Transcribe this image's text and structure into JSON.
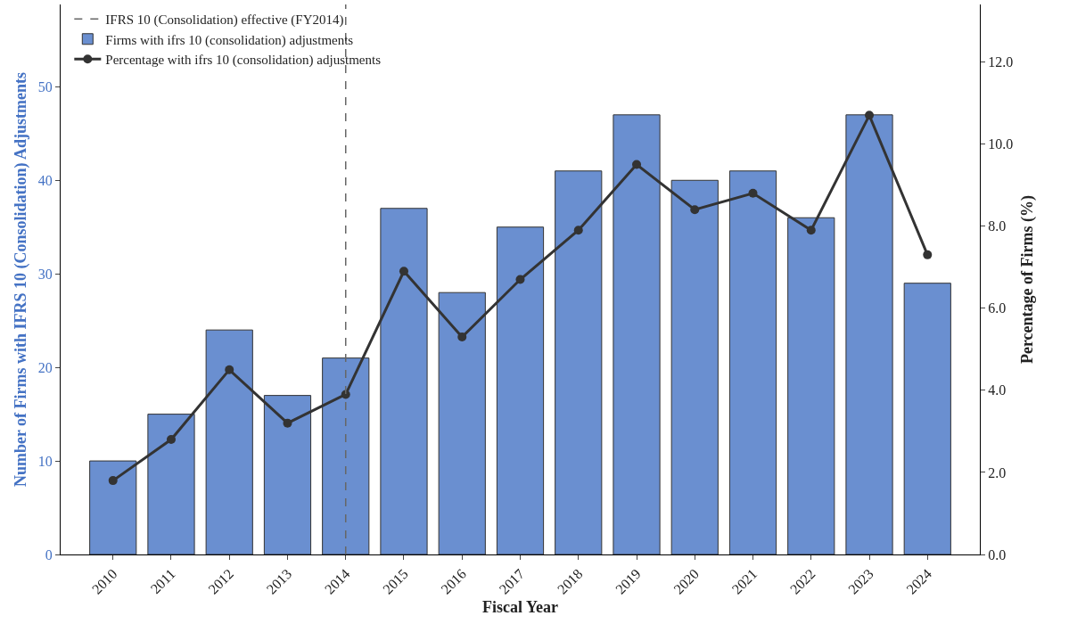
{
  "chart_data": {
    "type": "bar",
    "xlabel": "Fiscal Year",
    "ylabel": "Number of Firms with IFRS 10 (Consolidation) Adjustments",
    "y2label": "Percentage of Firms (%)",
    "categories": [
      "2010",
      "2011",
      "2012",
      "2013",
      "2014",
      "2015",
      "2016",
      "2017",
      "2018",
      "2019",
      "2020",
      "2021",
      "2022",
      "2023",
      "2024"
    ],
    "series": [
      {
        "name": "Firms with ifrs 10 (consolidation) adjustments",
        "color": "#6a8fd0",
        "values": [
          10,
          15,
          24,
          17,
          21,
          37,
          28,
          35,
          41,
          47,
          40,
          41,
          36,
          47,
          29
        ]
      },
      {
        "name": "Percentage with ifrs 10 (consolidation) adjustments",
        "type": "line",
        "axis": "y2",
        "color": "#333333",
        "marker": "circle",
        "line_style": "solid",
        "values": [
          1.8,
          2.8,
          4.5,
          3.2,
          3.9,
          6.9,
          5.3,
          6.7,
          7.9,
          9.5,
          8.4,
          8.8,
          7.9,
          10.7,
          7.3
        ]
      }
    ],
    "ylim": [
      0,
      58.8
    ],
    "yticks": [
      0,
      10,
      20,
      30,
      40,
      50
    ],
    "y2lim": [
      0,
      13.4
    ],
    "y2ticks": [
      {
        "value": 0,
        "label": "0.0"
      },
      {
        "value": 2,
        "label": "2.0"
      },
      {
        "value": 4,
        "label": "4.0"
      },
      {
        "value": 6,
        "label": "6.0"
      },
      {
        "value": 8,
        "label": "8.0"
      },
      {
        "value": 10,
        "label": "10.0"
      },
      {
        "value": 12,
        "label": "12.0"
      }
    ],
    "ref_lines": [
      {
        "axis": "x",
        "value": "2014",
        "label": "IFRS 10 (Consolidation) effective (FY2014)",
        "color": "#666666",
        "line_style": "dashed"
      }
    ],
    "grid": false,
    "legend": "top left"
  }
}
